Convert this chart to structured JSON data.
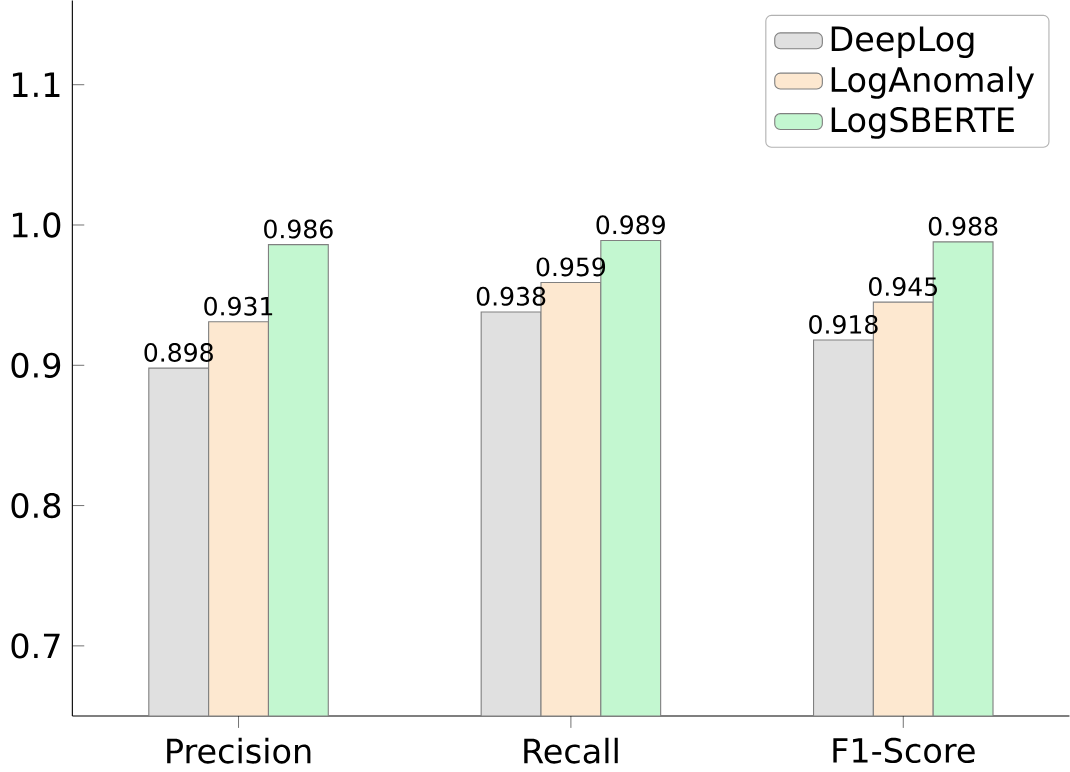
{
  "chart_data": {
    "type": "bar",
    "categories": [
      "Precision",
      "Recall",
      "F1-Score"
    ],
    "series": [
      {
        "name": "DeepLog",
        "color": "#e0e0e0",
        "values": [
          0.898,
          0.938,
          0.918
        ]
      },
      {
        "name": "LogAnomaly",
        "color": "#fde8d0",
        "values": [
          0.931,
          0.959,
          0.945
        ]
      },
      {
        "name": "LogSBERTE",
        "color": "#c3f7d0",
        "values": [
          0.986,
          0.989,
          0.988
        ]
      }
    ],
    "ylim": [
      0.65,
      1.16
    ],
    "yticks": [
      0.7,
      0.8,
      0.9,
      {
        "value": 1.0,
        "label": "1.0"
      },
      1.1
    ],
    "data_labels": true,
    "legend": "top right",
    "grid": false
  }
}
